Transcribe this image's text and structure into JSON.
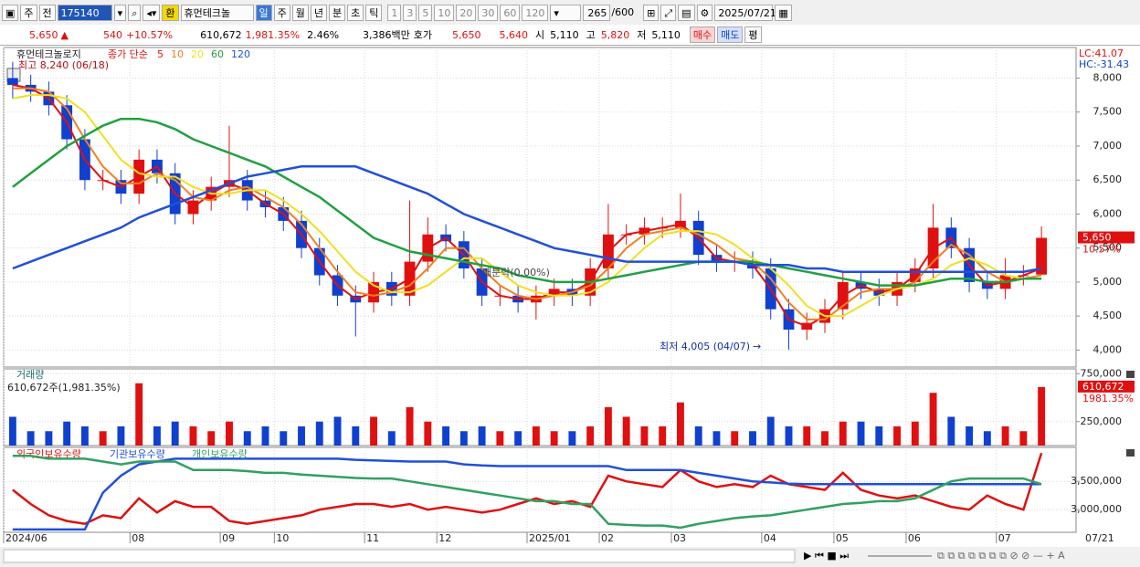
{
  "toolbar": {
    "period": "주",
    "range": "전",
    "code": "175140",
    "fx": "환",
    "name": "휴먼테크놀",
    "intervals": [
      "일",
      "주",
      "월",
      "년",
      "분",
      "초",
      "틱"
    ],
    "multipliers": [
      "1",
      "3",
      "5",
      "10",
      "20",
      "30",
      "60",
      "120"
    ],
    "count": "265",
    "max_count": "/600",
    "date": "2025/07/21"
  },
  "quote": {
    "price": "5,650",
    "arrow": "▲",
    "change": "540",
    "change_pct": "+10.57%",
    "volume": "610,672",
    "volume_pct": "1,981.35%",
    "turnover_pct": "2.46%",
    "amount": "3,386백만",
    "ask_label": "호가",
    "ask": "5,650",
    "bid": "5,640",
    "open_label": "시",
    "open": "5,110",
    "high_label": "고",
    "high": "5,820",
    "low_label": "저",
    "low": "5,110",
    "buy": "매수",
    "sell": "매도",
    "avg": "평"
  },
  "chart_data": [
    {
      "type": "candlestick",
      "title": "휴먼테크놀로지",
      "ma_label": "종가 단순",
      "lc_label": "LC:41.07",
      "hc_label": "HC:-31.43",
      "high_note": "최고 8,240 (06/18)",
      "low_note": "최저 4,005 (04/07)",
      "event_note": "배분락(0.00%)",
      "last_price_label": "5,650",
      "last_change_label": "10.57%",
      "last_date_label": "07/21",
      "categories": [
        "2024/06",
        null,
        null,
        null,
        null,
        null,
        null,
        "08",
        null,
        null,
        null,
        null,
        "09",
        null,
        null,
        "10",
        null,
        null,
        null,
        null,
        "11",
        null,
        null,
        null,
        "12",
        null,
        null,
        null,
        null,
        "2025/01",
        null,
        null,
        null,
        "02",
        null,
        null,
        null,
        "03",
        null,
        null,
        null,
        null,
        "04",
        null,
        null,
        null,
        "05",
        null,
        null,
        null,
        "06",
        null,
        null,
        null,
        null,
        "07",
        null,
        null
      ],
      "open": [
        8000,
        7900,
        7800,
        7600,
        7100,
        6500,
        6500,
        6300,
        6800,
        6600,
        6000,
        6200,
        6400,
        6500,
        6200,
        6100,
        5900,
        5500,
        5100,
        4800,
        4700,
        5000,
        4800,
        5300,
        5700,
        5600,
        5200,
        4800,
        4800,
        4700,
        4800,
        4900,
        4800,
        5200,
        5700,
        5700,
        5800,
        5800,
        5900,
        5400,
        5300,
        5300,
        5200,
        4600,
        4300,
        4400,
        4600,
        5000,
        4900,
        4800,
        5000,
        5200,
        5800,
        5500,
        5000,
        4900,
        5100,
        5110
      ],
      "high": [
        8240,
        8050,
        7950,
        7750,
        7250,
        6650,
        6650,
        6950,
        6950,
        6750,
        6350,
        6550,
        7300,
        6650,
        6350,
        6250,
        6050,
        5650,
        5250,
        4950,
        5150,
        5150,
        6200,
        5950,
        5850,
        5750,
        5350,
        4950,
        4950,
        4950,
        5050,
        5050,
        5350,
        6150,
        5850,
        5950,
        5950,
        6300,
        6050,
        5550,
        5450,
        5450,
        5350,
        4750,
        4550,
        4750,
        5150,
        5150,
        5050,
        5150,
        5350,
        6150,
        5950,
        5650,
        5150,
        5350,
        5250,
        5820
      ],
      "low": [
        7700,
        7650,
        7450,
        6950,
        6350,
        6350,
        6150,
        6150,
        6450,
        5850,
        5850,
        6050,
        6250,
        6050,
        5950,
        5750,
        5350,
        4950,
        4650,
        4200,
        4550,
        4650,
        4650,
        5150,
        5450,
        5050,
        4650,
        4650,
        4550,
        4450,
        4650,
        4650,
        4650,
        5050,
        5550,
        5550,
        5650,
        5650,
        5250,
        5150,
        5150,
        5050,
        4450,
        4005,
        4150,
        4250,
        4450,
        4750,
        4650,
        4650,
        4850,
        5050,
        5350,
        4850,
        4750,
        4750,
        4950,
        5110
      ],
      "close": [
        7900,
        7800,
        7600,
        7100,
        6500,
        6500,
        6300,
        6800,
        6600,
        6000,
        6200,
        6400,
        6500,
        6200,
        6100,
        5900,
        5500,
        5100,
        4800,
        4700,
        5000,
        4800,
        5300,
        5700,
        5600,
        5200,
        4800,
        4800,
        4700,
        4800,
        4900,
        4800,
        5200,
        5700,
        5700,
        5800,
        5800,
        5900,
        5400,
        5300,
        5300,
        5200,
        4600,
        4300,
        4400,
        4600,
        5000,
        4900,
        4800,
        5000,
        5200,
        5800,
        5500,
        5000,
        4900,
        5100,
        5100,
        5650
      ],
      "up_color": "#e01010",
      "down_color": "#1040d0",
      "series": [
        {
          "name": "5",
          "color": "#e01010",
          "values": [
            7900,
            7850,
            7700,
            7350,
            6800,
            6500,
            6400,
            6550,
            6700,
            6300,
            6100,
            6300,
            6450,
            6350,
            6150,
            6000,
            5700,
            5300,
            4950,
            4750,
            4850,
            4900,
            5050,
            5500,
            5650,
            5400,
            5000,
            4800,
            4750,
            4750,
            4850,
            4850,
            5000,
            5450,
            5700,
            5750,
            5800,
            5850,
            5650,
            5350,
            5300,
            5250,
            4900,
            4450,
            4350,
            4500,
            4800,
            4950,
            4850,
            4900,
            5100,
            5500,
            5650,
            5250,
            4950,
            5000,
            5100,
            5200
          ]
        },
        {
          "name": "10",
          "color": "#f08020",
          "values": [
            7850,
            7850,
            7800,
            7550,
            7100,
            6700,
            6450,
            6450,
            6600,
            6500,
            6250,
            6200,
            6350,
            6400,
            6250,
            6100,
            5850,
            5500,
            5150,
            4850,
            4800,
            4850,
            4950,
            5200,
            5500,
            5500,
            5200,
            4950,
            4800,
            4750,
            4800,
            4850,
            4950,
            5200,
            5500,
            5700,
            5750,
            5800,
            5700,
            5550,
            5350,
            5300,
            5050,
            4700,
            4450,
            4450,
            4650,
            4850,
            4900,
            4900,
            5000,
            5300,
            5550,
            5400,
            5150,
            5000,
            5050,
            5100
          ]
        },
        {
          "name": "20",
          "color": "#f0e020",
          "values": [
            7700,
            7750,
            7750,
            7700,
            7500,
            7150,
            6800,
            6600,
            6550,
            6550,
            6400,
            6300,
            6300,
            6350,
            6350,
            6200,
            6000,
            5750,
            5450,
            5150,
            4950,
            4850,
            4850,
            4950,
            5150,
            5350,
            5350,
            5150,
            4950,
            4850,
            4800,
            4800,
            4850,
            5000,
            5250,
            5500,
            5700,
            5750,
            5750,
            5700,
            5550,
            5350,
            5200,
            4950,
            4650,
            4500,
            4500,
            4650,
            4800,
            4900,
            4950,
            5050,
            5250,
            5350,
            5250,
            5100,
            5050,
            5050
          ]
        },
        {
          "name": "60",
          "color": "#20a040",
          "values": [
            6400,
            6600,
            6800,
            7000,
            7150,
            7300,
            7400,
            7400,
            7350,
            7250,
            7100,
            7000,
            6900,
            6800,
            6700,
            6550,
            6400,
            6250,
            6050,
            5850,
            5650,
            5550,
            5450,
            5400,
            5350,
            5300,
            5250,
            5200,
            5100,
            5050,
            5000,
            5000,
            5000,
            5050,
            5100,
            5150,
            5200,
            5250,
            5300,
            5300,
            5300,
            5300,
            5250,
            5200,
            5150,
            5100,
            5050,
            5000,
            4950,
            4950,
            4950,
            5000,
            5050,
            5050,
            5000,
            5000,
            5050,
            5050
          ]
        },
        {
          "name": "120",
          "color": "#2050d8",
          "values": [
            5200,
            5300,
            5400,
            5500,
            5600,
            5700,
            5800,
            5950,
            6050,
            6150,
            6250,
            6350,
            6450,
            6550,
            6600,
            6650,
            6700,
            6700,
            6700,
            6700,
            6600,
            6500,
            6400,
            6300,
            6150,
            6000,
            5900,
            5800,
            5700,
            5600,
            5500,
            5450,
            5400,
            5350,
            5300,
            5300,
            5300,
            5300,
            5300,
            5300,
            5300,
            5250,
            5250,
            5250,
            5200,
            5200,
            5150,
            5150,
            5150,
            5150,
            5150,
            5150,
            5150,
            5150,
            5150,
            5150,
            5150,
            5200
          ]
        }
      ],
      "ylim": [
        3750,
        8450
      ],
      "yticks": [
        {
          "value": 4000,
          "label": "4,000"
        },
        {
          "value": 4500,
          "label": "4,500"
        },
        {
          "value": 5000,
          "label": "5,000"
        },
        {
          "value": 5500,
          "label": "5,500"
        },
        {
          "value": 6000,
          "label": "6,000"
        },
        {
          "value": 6500,
          "label": "6,500"
        },
        {
          "value": 7000,
          "label": "7,000"
        },
        {
          "value": 7500,
          "label": "7,500"
        },
        {
          "value": 8000,
          "label": "8,000"
        }
      ],
      "grid": true
    },
    {
      "type": "bar",
      "title": "거래량",
      "subtitle": "610,672주(1,981.35%)",
      "last_label": "610,672",
      "last_change_label": "1981.35%",
      "values": [
        300000,
        150000,
        150000,
        250000,
        200000,
        150000,
        200000,
        650000,
        200000,
        250000,
        200000,
        150000,
        250000,
        150000,
        200000,
        150000,
        200000,
        250000,
        300000,
        200000,
        300000,
        150000,
        400000,
        250000,
        200000,
        150000,
        200000,
        150000,
        150000,
        200000,
        150000,
        150000,
        200000,
        400000,
        300000,
        200000,
        200000,
        450000,
        200000,
        150000,
        150000,
        150000,
        300000,
        200000,
        200000,
        150000,
        250000,
        250000,
        200000,
        200000,
        250000,
        550000,
        300000,
        200000,
        150000,
        200000,
        150000,
        610672
      ],
      "ylim": [
        0,
        800000
      ],
      "yticks": [
        {
          "value": 250000,
          "label": "250,000"
        },
        {
          "value": 750000,
          "label": "750,000"
        }
      ],
      "grid": true
    },
    {
      "type": "line",
      "series": [
        {
          "name": "외국인보유수량",
          "color": "#e01010",
          "values": [
            3350000,
            3100000,
            2900000,
            2800000,
            2750000,
            2900000,
            2850000,
            3200000,
            2950000,
            3150000,
            3050000,
            3050000,
            2800000,
            2750000,
            2800000,
            2850000,
            2900000,
            3000000,
            3050000,
            3100000,
            3100000,
            3050000,
            3100000,
            3000000,
            3050000,
            3000000,
            2950000,
            3000000,
            3100000,
            3200000,
            3100000,
            3150000,
            3050000,
            3600000,
            3500000,
            3450000,
            3400000,
            3700000,
            3500000,
            3400000,
            3450000,
            3400000,
            3600000,
            3450000,
            3400000,
            3350000,
            3650000,
            3350000,
            3250000,
            3200000,
            3250000,
            3150000,
            3050000,
            3000000,
            3250000,
            3100000,
            3000000,
            4000000
          ]
        },
        {
          "name": "기관보유수량",
          "color": "#2050d8",
          "values": [
            2650000,
            2650000,
            2650000,
            2650000,
            2650000,
            3300000,
            3600000,
            3800000,
            3850000,
            3900000,
            3900000,
            3900000,
            3900000,
            3900000,
            3900000,
            3900000,
            3900000,
            3900000,
            3900000,
            3880000,
            3870000,
            3860000,
            3850000,
            3850000,
            3850000,
            3800000,
            3780000,
            3770000,
            3770000,
            3770000,
            3770000,
            3770000,
            3770000,
            3770000,
            3700000,
            3700000,
            3700000,
            3700000,
            3650000,
            3600000,
            3550000,
            3500000,
            3480000,
            3460000,
            3450000,
            3450000,
            3450000,
            3450000,
            3450000,
            3450000,
            3450000,
            3450000,
            3450000,
            3450000,
            3450000,
            3450000,
            3450000,
            3450000
          ]
        },
        {
          "name": "개인보유수량",
          "color": "#30a060",
          "values": [
            3950000,
            3950000,
            3900000,
            3900000,
            3900000,
            3850000,
            3800000,
            3850000,
            3850000,
            3850000,
            3700000,
            3700000,
            3700000,
            3680000,
            3650000,
            3650000,
            3620000,
            3600000,
            3580000,
            3560000,
            3550000,
            3550000,
            3500000,
            3450000,
            3400000,
            3350000,
            3300000,
            3250000,
            3200000,
            3150000,
            3150000,
            3100000,
            3100000,
            2750000,
            2730000,
            2720000,
            2720000,
            2680000,
            2750000,
            2800000,
            2850000,
            2880000,
            2900000,
            2950000,
            3000000,
            3050000,
            3100000,
            3120000,
            3150000,
            3150000,
            3200000,
            3350000,
            3500000,
            3550000,
            3550000,
            3550000,
            3550000,
            3450000
          ]
        }
      ],
      "ylim": [
        2600000,
        4100000
      ],
      "yticks": [
        {
          "value": 3000000,
          "label": "3,000,000"
        },
        {
          "value": 3500000,
          "label": "3,500,000"
        }
      ],
      "grid": true
    }
  ]
}
